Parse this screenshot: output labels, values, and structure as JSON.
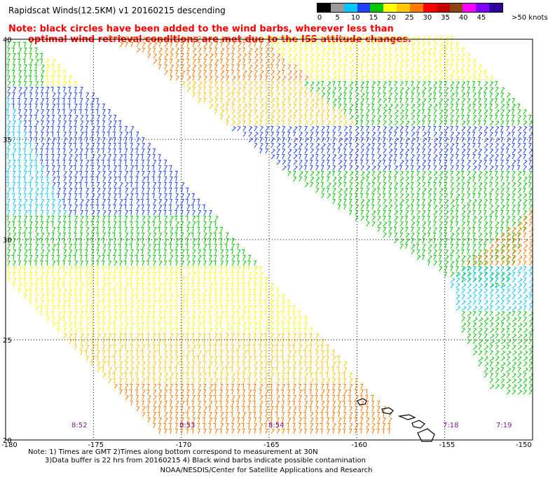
{
  "title": "Rapidscat Winds(12.5KM) v1 20160215 descending",
  "note": {
    "line1": "Note: black circles have been added to the wind barbs, wherever less than",
    "line2": "optimal wind retrieval conditions are met due to the ISS attitude changes."
  },
  "legend": {
    "units": ">50 knots",
    "ticks": [
      "0",
      "5",
      "10",
      "15",
      "20",
      "25",
      "30",
      "35",
      "40",
      "45"
    ],
    "colors": [
      "#000000",
      "#9a9a9a",
      "#00c8ff",
      "#2040ff",
      "#00c800",
      "#ffff00",
      "#ffc800",
      "#ff7800",
      "#ff0000",
      "#c80000",
      "#8b4513",
      "#ff00ff",
      "#8000ff",
      "#3000a0"
    ]
  },
  "axes": {
    "lat_labels": [
      "40",
      "35",
      "30",
      "25",
      "20"
    ],
    "lon_labels": [
      "-180",
      "-175",
      "-170",
      "-165",
      "-160",
      "-155",
      "-150"
    ]
  },
  "time_labels": [
    "8:52",
    "8:53",
    "8:54",
    "7:18",
    "7:19"
  ],
  "footnote": {
    "line1": "Note: 1) Times are GMT 2)Times along bottom correspond to measurement at 30N",
    "line2": "3)Data buffer is 22 hrs from 20160215 4) Black wind barbs indicate possible contamination"
  },
  "credit": "NOAA/NESDIS/Center for Satellite Applications and Research"
}
